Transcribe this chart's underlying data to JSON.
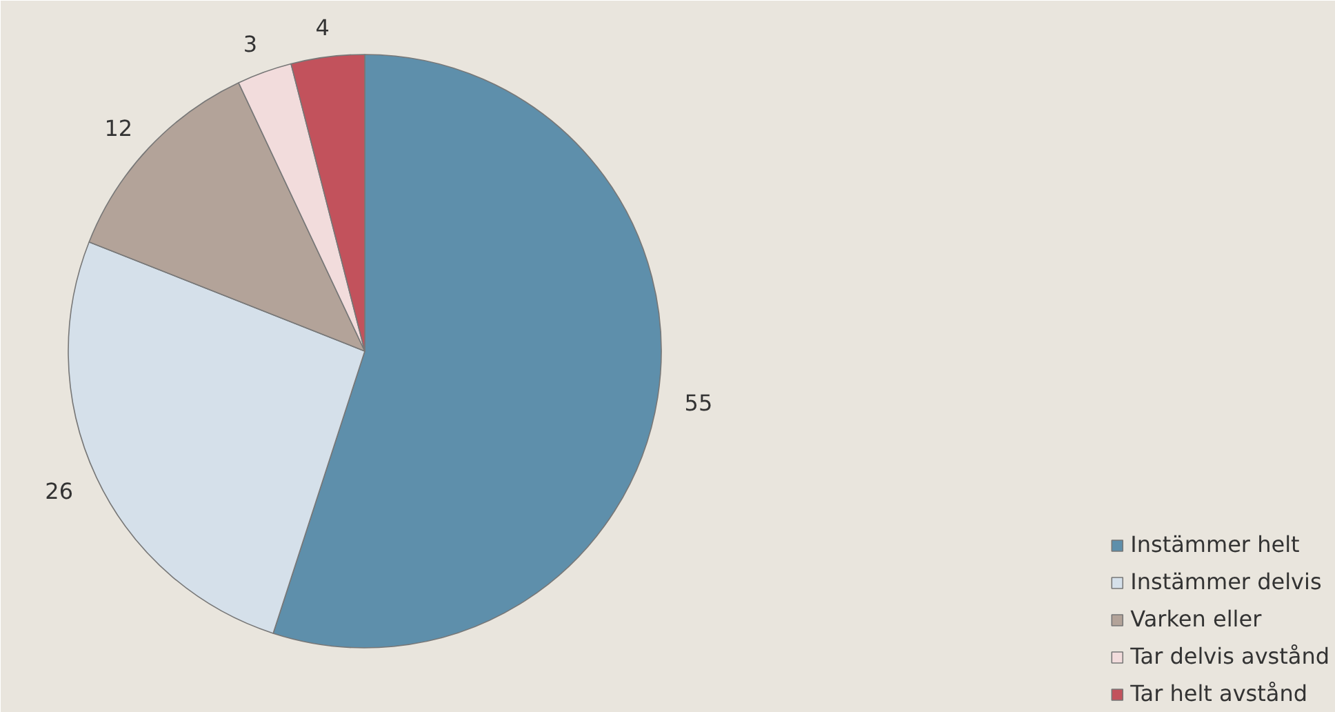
{
  "chart_data": {
    "type": "pie",
    "categories": [
      "Instämmer helt",
      "Instämmer delvis",
      "Varken eller",
      "Tar delvis avstånd",
      "Tar helt avstånd"
    ],
    "values": [
      55,
      26,
      12,
      3,
      4
    ],
    "colors": [
      "#5e8fab",
      "#d5e0ea",
      "#b3a399",
      "#f2dcdc",
      "#c2525c"
    ],
    "data_labels": true,
    "legend": "bottom right"
  }
}
